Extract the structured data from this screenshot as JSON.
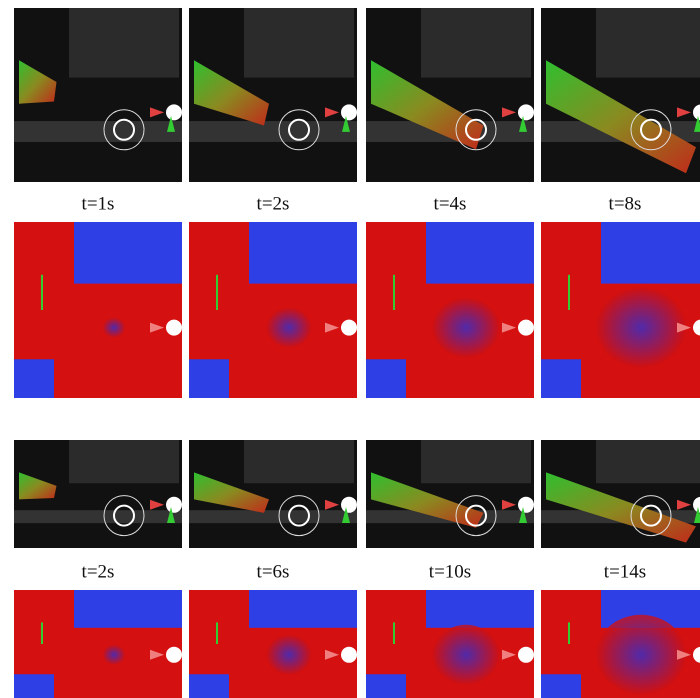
{
  "groups": [
    {
      "captions": [
        "t=1s",
        "t=2s",
        "t=4s",
        "t=8s"
      ]
    },
    {
      "captions": [
        "t=2s",
        "t=6s",
        "t=10s",
        "t=14s"
      ]
    }
  ]
}
